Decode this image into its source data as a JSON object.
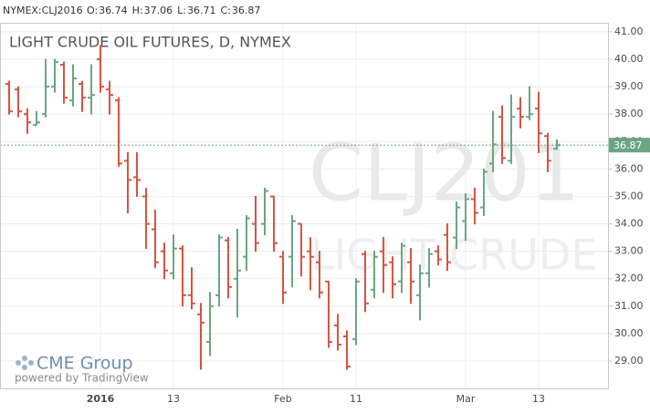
{
  "header": {
    "symbol": "NYMEX:CLJ2016",
    "ohlc": [
      {
        "label": "O:",
        "value": 36.74
      },
      {
        "label": "H:",
        "value": 37.06
      },
      {
        "label": "L:",
        "value": 36.71
      },
      {
        "label": "C:",
        "value": 36.87
      }
    ]
  },
  "branding": {
    "logo": "CME Group",
    "credit": "powered by TradingView"
  },
  "chart_data": {
    "type": "ohlc",
    "title": "LIGHT CRUDE OIL FUTURES, D, NYMEX",
    "watermark": [
      "CLJ201",
      "LIGHT CRUDE"
    ],
    "categories": [
      null,
      null,
      null,
      null,
      null,
      null,
      null,
      null,
      null,
      null,
      "2016",
      null,
      null,
      null,
      null,
      null,
      null,
      null,
      "13",
      null,
      null,
      null,
      null,
      null,
      null,
      null,
      null,
      null,
      null,
      null,
      "Feb",
      null,
      null,
      null,
      null,
      null,
      null,
      null,
      "11",
      null,
      null,
      null,
      null,
      null,
      null,
      null,
      null,
      null,
      null,
      null,
      "Mar",
      null,
      null,
      null,
      null,
      null,
      null,
      null,
      "13",
      null,
      null
    ],
    "open": [
      39.1,
      38.9,
      38.0,
      37.6,
      38.0,
      39.0,
      39.8,
      38.5,
      39.1,
      38.6,
      40.0,
      38.9,
      38.5,
      36.3,
      35.7,
      35.0,
      33.8,
      33.0,
      32.2,
      33.1,
      31.4,
      30.7,
      29.7,
      31.4,
      33.4,
      32.0,
      32.8,
      34.0,
      34.0,
      35.0,
      32.8,
      32.8,
      34.0,
      33.0,
      32.6,
      31.9,
      30.3,
      29.9,
      29.8,
      32.9,
      31.6,
      33.0,
      32.6,
      31.9,
      32.6,
      31.4,
      32.2,
      33.0,
      33.6,
      33.5,
      34.1,
      34.9,
      34.6,
      36.2,
      37.9,
      36.3,
      38.2,
      37.9,
      38.2,
      37.2,
      36.74
    ],
    "high": [
      39.2,
      39.0,
      38.2,
      38.1,
      40.0,
      40.0,
      39.9,
      39.8,
      39.2,
      39.8,
      40.5,
      39.2,
      38.6,
      36.6,
      36.6,
      35.3,
      34.5,
      33.3,
      33.6,
      33.2,
      32.4,
      31.1,
      31.5,
      33.6,
      33.5,
      33.8,
      34.3,
      35.0,
      35.3,
      35.0,
      33.0,
      34.3,
      34.0,
      33.5,
      33.0,
      31.9,
      30.7,
      30.1,
      32.0,
      33.0,
      33.0,
      33.5,
      32.8,
      33.3,
      33.1,
      32.5,
      33.1,
      33.2,
      34.0,
      34.8,
      35.1,
      35.3,
      36.0,
      38.1,
      38.3,
      38.7,
      38.6,
      39.0,
      38.8,
      37.3,
      37.06
    ],
    "low": [
      38.0,
      37.9,
      37.3,
      37.6,
      37.9,
      38.8,
      38.4,
      38.3,
      38.1,
      38.0,
      38.8,
      38.0,
      36.1,
      34.4,
      35.0,
      33.1,
      32.4,
      32.0,
      32.0,
      31.0,
      30.9,
      28.7,
      29.2,
      31.0,
      31.3,
      30.6,
      32.3,
      33.0,
      33.6,
      33.0,
      31.1,
      31.7,
      32.1,
      31.6,
      31.3,
      29.5,
      29.4,
      28.7,
      29.6,
      30.8,
      31.3,
      31.5,
      31.3,
      31.5,
      31.1,
      30.5,
      31.7,
      32.5,
      32.3,
      33.1,
      33.4,
      34.0,
      34.3,
      35.9,
      36.2,
      36.2,
      37.5,
      37.8,
      36.6,
      35.9,
      36.71
    ],
    "close": [
      38.1,
      38.1,
      37.7,
      37.7,
      39.0,
      39.9,
      38.6,
      39.3,
      38.6,
      38.7,
      39.0,
      38.7,
      36.2,
      35.6,
      35.6,
      34.0,
      32.6,
      32.3,
      33.1,
      31.4,
      31.1,
      30.4,
      31.0,
      33.5,
      31.7,
      32.3,
      34.2,
      33.3,
      35.2,
      33.3,
      31.5,
      34.1,
      32.8,
      32.8,
      31.5,
      29.7,
      29.6,
      28.8,
      31.9,
      31.1,
      32.8,
      32.5,
      31.8,
      33.2,
      31.9,
      32.2,
      32.9,
      32.7,
      32.6,
      34.6,
      34.9,
      34.4,
      35.9,
      36.9,
      36.4,
      37.9,
      37.9,
      38.0,
      37.3,
      36.3,
      36.87
    ],
    "up_color": "#6ba583",
    "down_color": "#d75442",
    "ylim": [
      27.97,
      41.33
    ],
    "yticks": [
      {
        "value": 29,
        "label": "29.00"
      },
      {
        "value": 30,
        "label": "30.00"
      },
      {
        "value": 31,
        "label": "31.00"
      },
      {
        "value": 32,
        "label": "32.00"
      },
      {
        "value": 33,
        "label": "33.00"
      },
      {
        "value": 34,
        "label": "34.00"
      },
      {
        "value": 35,
        "label": "35.00"
      },
      {
        "value": 36,
        "label": "36.00"
      },
      {
        "value": 37,
        "label": "37.00"
      },
      {
        "value": 38,
        "label": "38.00"
      },
      {
        "value": 39,
        "label": "39.00"
      },
      {
        "value": 40,
        "label": "40.00"
      },
      {
        "value": 41,
        "label": "41.00"
      }
    ],
    "grid": true
  }
}
